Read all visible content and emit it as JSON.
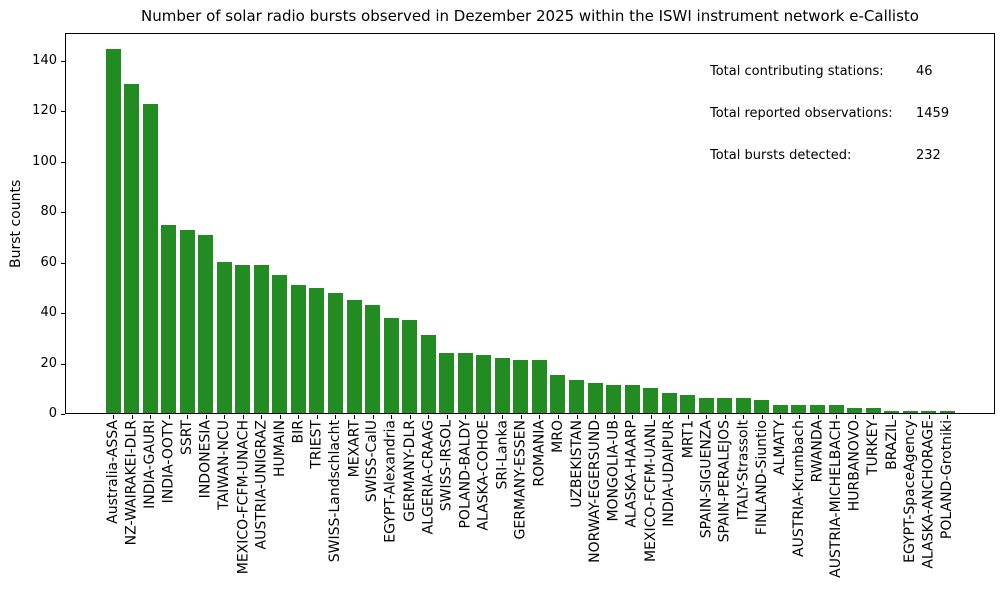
{
  "chart_data": {
    "type": "bar",
    "title": "Number of solar radio bursts observed in Dezember 2025 within the ISWI instrument network e-Callisto",
    "xlabel": "",
    "ylabel": "Burst counts",
    "ylim": [
      0,
      151
    ],
    "yticks": [
      0,
      20,
      40,
      60,
      80,
      100,
      120,
      140
    ],
    "grid": false,
    "legend": null,
    "bar_color": "#228B22",
    "categories": [
      "Australia-ASSA",
      "NZ-WAIRAKEI-DLR",
      "INDIA-GAURI",
      "INDIA-OOTY",
      "SSRT",
      "INDONESIA",
      "TAIWAN-NCU",
      "MEXICO-FCFM-UNACH",
      "AUSTRIA-UNIGRAZ",
      "HUMAIN",
      "BIR",
      "TRIEST",
      "SWISS-Landschlacht",
      "MEXART",
      "SWISS-CalU",
      "EGYPT-Alexandria",
      "GERMANY-DLR",
      "ALGERIA-CRAAG",
      "SWISS-IRSOL",
      "POLAND-BALDY",
      "ALASKA-COHOE",
      "SRI-Lanka",
      "GERMANY-ESSEN",
      "ROMANIA",
      "MRO",
      "UZBEKISTAN",
      "NORWAY-EGERSUND",
      "MONGOLIA-UB",
      "ALASKA-HAARP",
      "MEXICO-FCFM-UANL",
      "INDIA-UDAIPUR",
      "MRT1",
      "SPAIN-SIGUENZA",
      "SPAIN-PERALEJOS",
      "ITALY-Strassolt",
      "FINLAND-Siuntio",
      "ALMATY",
      "AUSTRIA-Krumbach",
      "RWANDA",
      "AUSTRIA-MICHELBACH",
      "HURBANOVO",
      "TURKEY",
      "BRAZIL",
      "EGYPT-SpaceAgency",
      "ALASKA-ANCHORAGE",
      "POLAND-Grotniki"
    ],
    "values": [
      145,
      131,
      123,
      75,
      73,
      71,
      60,
      59,
      59,
      55,
      51,
      50,
      48,
      45,
      43,
      38,
      37,
      31,
      24,
      24,
      23,
      22,
      21,
      21,
      15,
      13,
      12,
      11,
      11,
      10,
      8,
      7,
      6,
      6,
      6,
      5,
      3,
      3,
      3,
      3,
      2,
      2,
      1,
      1,
      1,
      1
    ],
    "annotations": [
      {
        "label": "Total contributing stations:",
        "value": "46"
      },
      {
        "label": "Total reported observations:",
        "value": "1459"
      },
      {
        "label": "Total bursts detected:",
        "value": "232"
      }
    ]
  }
}
